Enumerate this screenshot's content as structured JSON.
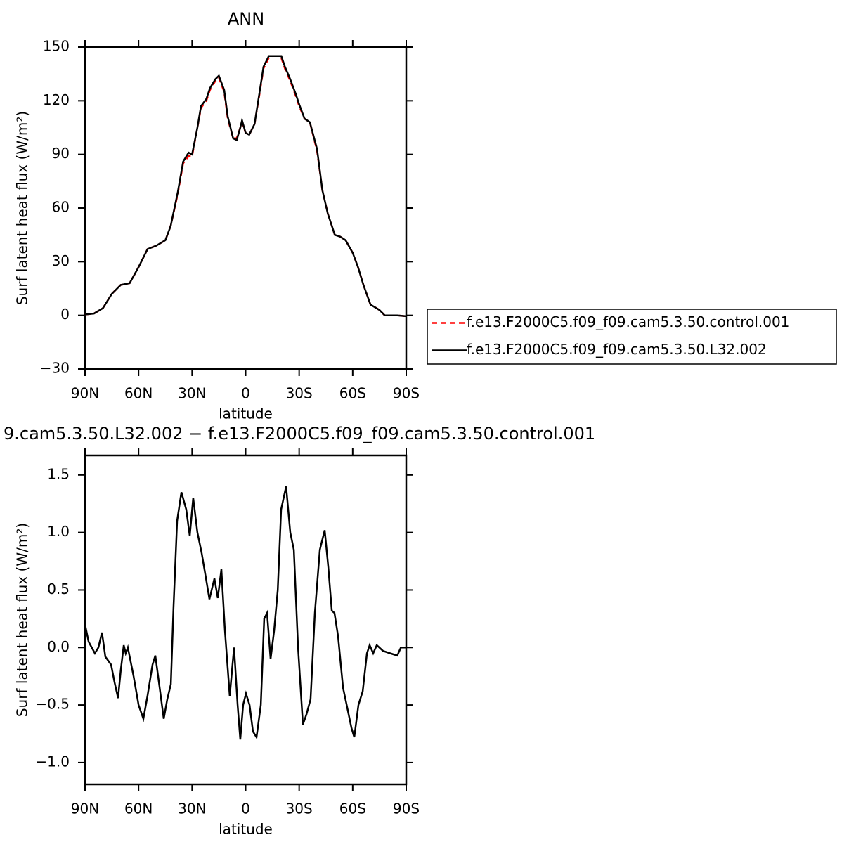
{
  "chart_data": [
    {
      "type": "line",
      "title": "ANN",
      "xlabel": "latitude",
      "ylabel": "Surf latent heat flux (W/m²)",
      "xlim": [
        90,
        -90
      ],
      "ylim": [
        -30,
        150
      ],
      "xticks": [
        {
          "value": 90,
          "label": "90N"
        },
        {
          "value": 60,
          "label": "60N"
        },
        {
          "value": 30,
          "label": "30N"
        },
        0,
        {
          "value": -30,
          "label": "30S"
        },
        {
          "value": -60,
          "label": "60S"
        },
        {
          "value": -90,
          "label": "90S"
        }
      ],
      "yticks": [
        {
          "value": -30,
          "label": "−30"
        },
        0,
        30,
        60,
        90,
        120,
        150
      ],
      "legend": "right",
      "x": [
        90,
        85,
        80,
        75,
        70,
        65,
        60,
        55,
        50,
        45,
        42,
        38,
        35,
        32,
        30,
        27,
        25,
        22,
        20,
        17,
        15,
        12,
        10,
        7,
        5,
        3,
        2,
        0,
        -2,
        -5,
        -8,
        -10,
        -13,
        -15,
        -18,
        -20,
        -22,
        -25,
        -28,
        -30,
        -33,
        -36,
        -40,
        -43,
        -46,
        -50,
        -53,
        -56,
        -60,
        -63,
        -66,
        -70,
        -75,
        -78,
        -80,
        -85,
        -90
      ],
      "series": [
        {
          "name": "f.e13.F2000C5.f09_f09.cam5.3.50.control.001",
          "color": "#ff0000",
          "dash": true,
          "values": [
            0.5,
            1,
            4,
            12,
            17,
            18,
            27,
            37,
            39,
            42,
            50,
            68,
            85,
            89,
            89,
            105,
            116,
            120,
            126,
            131,
            133,
            125,
            110,
            99,
            99,
            105,
            108,
            102,
            101,
            107,
            125,
            138,
            144,
            145,
            145,
            144,
            138,
            131,
            123,
            117,
            110,
            108,
            92,
            70,
            57,
            45,
            44,
            42,
            35,
            27,
            17,
            6,
            3,
            0,
            0,
            0,
            -0.5
          ]
        },
        {
          "name": "f.e13.F2000C5.f09_f09.cam5.3.50.L32.002",
          "color": "#000000",
          "values": [
            0.5,
            1,
            4,
            12,
            17,
            18,
            27,
            37,
            39,
            42,
            50,
            69,
            86,
            91,
            90,
            105,
            117,
            121,
            127,
            132,
            134,
            126,
            111,
            99,
            98,
            105,
            109,
            102,
            101,
            107,
            126,
            139,
            145,
            145,
            145,
            145,
            139,
            132,
            124,
            118,
            110,
            108,
            93,
            70,
            57,
            45,
            44,
            42,
            35,
            27,
            17,
            6,
            3,
            0,
            0,
            0,
            -0.5
          ]
        }
      ]
    },
    {
      "type": "line",
      "title": "9.cam5.3.50.L32.002 − f.e13.F2000C5.f09_f09.cam5.3.50.control.001",
      "xlabel": "latitude",
      "ylabel": "Surf latent heat flux (W/m²)",
      "xlim": [
        90,
        -90
      ],
      "ylim": [
        -1.19,
        1.67
      ],
      "xticks": [
        {
          "value": 90,
          "label": "90N"
        },
        {
          "value": 60,
          "label": "60N"
        },
        {
          "value": 30,
          "label": "30N"
        },
        0,
        {
          "value": -30,
          "label": "30S"
        },
        {
          "value": -60,
          "label": "60S"
        },
        {
          "value": -90,
          "label": "90S"
        }
      ],
      "yticks": [
        {
          "value": -1,
          "label": "−1.0"
        },
        {
          "value": -0.5,
          "label": "−0.5"
        },
        {
          "value": 0,
          "label": "0.0"
        },
        0.5,
        {
          "value": 1,
          "label": "1.0"
        },
        1.5
      ],
      "color": "#000000",
      "x": [
        90,
        88,
        84.5,
        82.5,
        80.5,
        78.6,
        75.4,
        73.5,
        71.5,
        70,
        68.3,
        67.2,
        66,
        62.8,
        60,
        57.3,
        55,
        52.2,
        50.6,
        48.6,
        45.9,
        43.9,
        41.9,
        40.4,
        38.4,
        36,
        33.3,
        31.3,
        29.4,
        27,
        24.6,
        22.2,
        20.3,
        17.5,
        15.6,
        13.6,
        11.6,
        8.9,
        6.5,
        4.5,
        3,
        1.4,
        -0.2,
        -2.2,
        -4.1,
        -6.1,
        -8.5,
        -10.4,
        -12,
        -14,
        -16,
        -18,
        -19.9,
        -22.7,
        -25,
        -27,
        -29.4,
        -32.1,
        -34.1,
        -36.4,
        -38.8,
        -41.6,
        -44.3,
        -46.3,
        -48.3,
        -49.8,
        -51.8,
        -54.6,
        -57.3,
        -59.3,
        -60.9,
        -63.2,
        -65.6,
        -68,
        -69.5,
        -71.5,
        -73.5,
        -77,
        -81,
        -85,
        -87,
        -90
      ],
      "values": [
        0.2,
        0.05,
        -0.05,
        0,
        0.13,
        -0.08,
        -0.15,
        -0.3,
        -0.44,
        -0.2,
        0.02,
        -0.05,
        0,
        -0.25,
        -0.5,
        -0.62,
        -0.42,
        -0.15,
        -0.07,
        -0.3,
        -0.62,
        -0.45,
        -0.32,
        0.35,
        1.1,
        1.35,
        1.2,
        0.97,
        1.3,
        1,
        0.82,
        0.6,
        0.42,
        0.6,
        0.43,
        0.68,
        0.15,
        -0.42,
        0,
        -0.5,
        -0.8,
        -0.5,
        -0.4,
        -0.5,
        -0.73,
        -0.78,
        -0.5,
        0.25,
        0.3,
        -0.1,
        0.15,
        0.5,
        1.2,
        1.4,
        1,
        0.85,
        0,
        -0.67,
        -0.58,
        -0.45,
        0.3,
        0.85,
        1.02,
        0.7,
        0.32,
        0.3,
        0.1,
        -0.35,
        -0.55,
        -0.7,
        -0.78,
        -0.5,
        -0.38,
        -0.05,
        0.02,
        -0.05,
        0.02,
        -0.03,
        -0.05,
        -0.07,
        0,
        0
      ]
    }
  ]
}
